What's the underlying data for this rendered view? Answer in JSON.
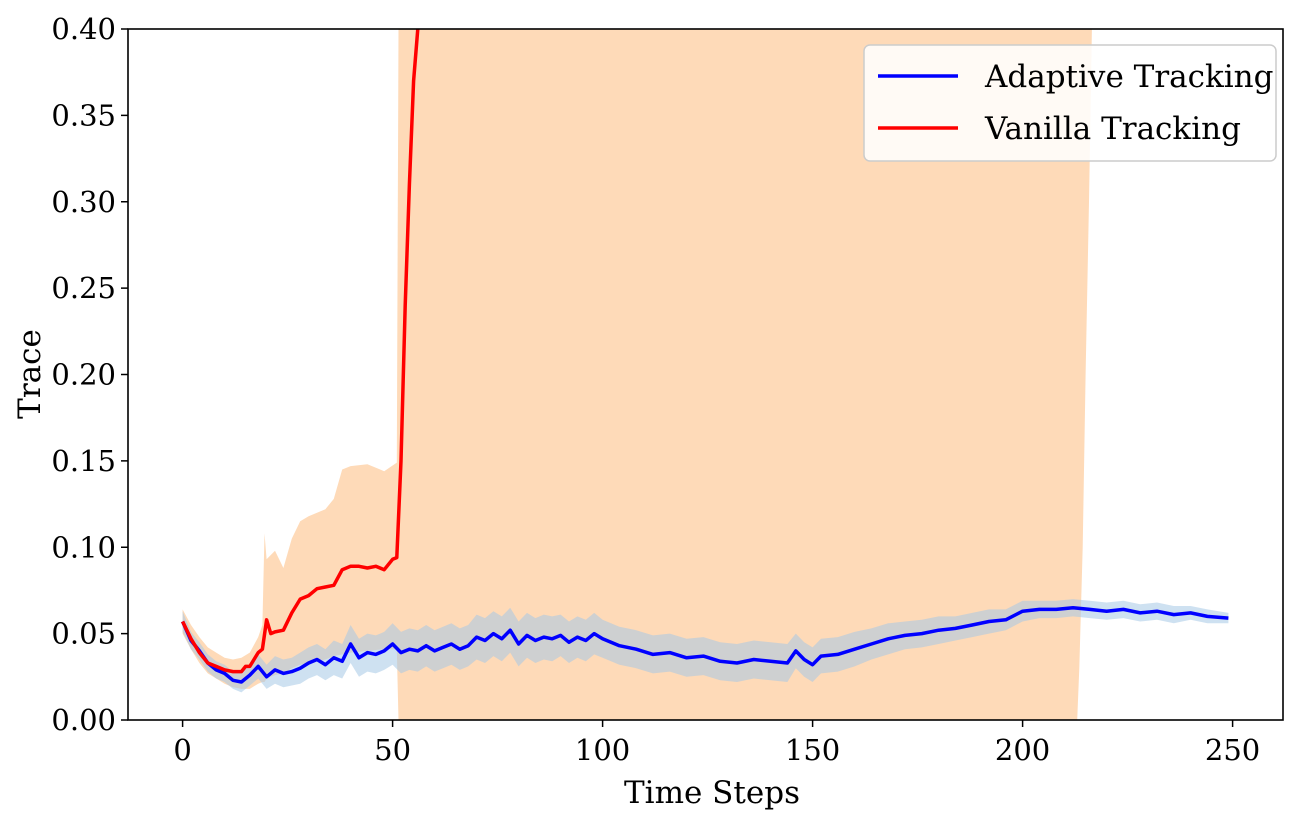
{
  "chart_data": {
    "type": "line",
    "title": "",
    "xlabel": "Time Steps",
    "ylabel": "Trace",
    "xlim": [
      -13,
      262
    ],
    "ylim": [
      0.0,
      0.4
    ],
    "xticks": [
      0,
      50,
      100,
      150,
      200,
      250
    ],
    "xtick_labels": [
      "0",
      "50",
      "100",
      "150",
      "200",
      "250"
    ],
    "yticks": [
      0.0,
      0.05,
      0.1,
      0.15,
      0.2,
      0.25,
      0.3,
      0.35,
      0.4
    ],
    "ytick_labels": [
      "0.00",
      "0.05",
      "0.10",
      "0.15",
      "0.20",
      "0.25",
      "0.30",
      "0.35",
      "0.40"
    ],
    "grid": false,
    "legend_position": "top-right",
    "series": [
      {
        "name": "Adaptive Tracking",
        "color": "#0000ff",
        "band_color": "#a6c8e6",
        "x": [
          0,
          2,
          4,
          6,
          8,
          10,
          12,
          14,
          16,
          18,
          20,
          22,
          24,
          26,
          28,
          30,
          32,
          34,
          36,
          38,
          40,
          42,
          44,
          46,
          48,
          50,
          52,
          54,
          56,
          58,
          60,
          62,
          64,
          66,
          68,
          70,
          72,
          74,
          76,
          78,
          80,
          82,
          84,
          86,
          88,
          90,
          92,
          94,
          96,
          98,
          100,
          104,
          108,
          112,
          116,
          120,
          124,
          128,
          132,
          136,
          140,
          144,
          146,
          148,
          150,
          152,
          156,
          160,
          164,
          168,
          172,
          176,
          180,
          184,
          188,
          192,
          196,
          200,
          204,
          208,
          212,
          216,
          220,
          224,
          228,
          232,
          236,
          240,
          244,
          249
        ],
        "values": [
          0.057,
          0.046,
          0.04,
          0.033,
          0.029,
          0.027,
          0.023,
          0.022,
          0.026,
          0.031,
          0.025,
          0.029,
          0.027,
          0.028,
          0.03,
          0.033,
          0.035,
          0.032,
          0.036,
          0.034,
          0.044,
          0.036,
          0.039,
          0.038,
          0.04,
          0.044,
          0.039,
          0.041,
          0.04,
          0.043,
          0.04,
          0.042,
          0.044,
          0.041,
          0.043,
          0.048,
          0.046,
          0.05,
          0.047,
          0.052,
          0.044,
          0.049,
          0.046,
          0.048,
          0.047,
          0.049,
          0.045,
          0.048,
          0.046,
          0.05,
          0.047,
          0.043,
          0.041,
          0.038,
          0.039,
          0.036,
          0.037,
          0.034,
          0.033,
          0.035,
          0.034,
          0.033,
          0.04,
          0.035,
          0.032,
          0.037,
          0.038,
          0.041,
          0.044,
          0.047,
          0.049,
          0.05,
          0.052,
          0.053,
          0.055,
          0.057,
          0.058,
          0.063,
          0.064,
          0.064,
          0.065,
          0.064,
          0.063,
          0.064,
          0.062,
          0.063,
          0.061,
          0.062,
          0.06,
          0.059
        ],
        "band_half_width": [
          0.006,
          0.005,
          0.005,
          0.005,
          0.005,
          0.005,
          0.005,
          0.006,
          0.006,
          0.007,
          0.007,
          0.008,
          0.008,
          0.008,
          0.009,
          0.009,
          0.009,
          0.009,
          0.01,
          0.01,
          0.011,
          0.011,
          0.011,
          0.011,
          0.011,
          0.012,
          0.012,
          0.012,
          0.012,
          0.012,
          0.012,
          0.012,
          0.012,
          0.012,
          0.012,
          0.013,
          0.013,
          0.013,
          0.013,
          0.013,
          0.013,
          0.013,
          0.013,
          0.013,
          0.013,
          0.012,
          0.012,
          0.012,
          0.012,
          0.012,
          0.011,
          0.011,
          0.011,
          0.011,
          0.011,
          0.011,
          0.011,
          0.011,
          0.011,
          0.011,
          0.011,
          0.011,
          0.01,
          0.01,
          0.01,
          0.01,
          0.01,
          0.01,
          0.009,
          0.009,
          0.008,
          0.008,
          0.008,
          0.007,
          0.007,
          0.007,
          0.006,
          0.006,
          0.005,
          0.005,
          0.005,
          0.005,
          0.005,
          0.005,
          0.005,
          0.005,
          0.005,
          0.004,
          0.004,
          0.003
        ]
      },
      {
        "name": "Vanilla Tracking",
        "color": "#ff0000",
        "band_color": "#fed8b4",
        "x": [
          0,
          2,
          4,
          6,
          8,
          10,
          12,
          14,
          15,
          16,
          17,
          18,
          19,
          20,
          21,
          22,
          24,
          26,
          28,
          30,
          32,
          34,
          36,
          38,
          40,
          42,
          44,
          46,
          48,
          50,
          51,
          52,
          53,
          54,
          55,
          56
        ],
        "values": [
          0.057,
          0.047,
          0.039,
          0.033,
          0.031,
          0.029,
          0.028,
          0.028,
          0.031,
          0.031,
          0.035,
          0.039,
          0.041,
          0.058,
          0.05,
          0.051,
          0.052,
          0.062,
          0.07,
          0.072,
          0.076,
          0.077,
          0.078,
          0.087,
          0.089,
          0.089,
          0.088,
          0.089,
          0.087,
          0.093,
          0.094,
          0.15,
          0.24,
          0.31,
          0.37,
          0.4
        ]
      }
    ],
    "vanilla_band": {
      "x": [
        0,
        2,
        4,
        6,
        8,
        10,
        12,
        14,
        16,
        18,
        19,
        19.5,
        20,
        22,
        24,
        26,
        28,
        30,
        32,
        34,
        36,
        38,
        40,
        44,
        48,
        51,
        51.4,
        55,
        60,
        100,
        150,
        200,
        212,
        214,
        216
      ],
      "lower": [
        0.05,
        0.041,
        0.033,
        0.027,
        0.024,
        0.021,
        0.019,
        0.018,
        0.018,
        0.021,
        0.022,
        0.022,
        0.024,
        0.026,
        0.027,
        0.03,
        0.032,
        0.033,
        0.034,
        0.035,
        0.037,
        0.038,
        0.039,
        0.04,
        0.041,
        0.041,
        0.0,
        0.0,
        0.0,
        0.0,
        0.0,
        0.0,
        0.0,
        0.0,
        0.0
      ],
      "upper": [
        0.064,
        0.055,
        0.048,
        0.042,
        0.039,
        0.036,
        0.035,
        0.036,
        0.039,
        0.048,
        0.055,
        0.108,
        0.093,
        0.098,
        0.088,
        0.105,
        0.115,
        0.118,
        0.12,
        0.122,
        0.128,
        0.145,
        0.147,
        0.148,
        0.144,
        0.149,
        0.4,
        0.4,
        0.4,
        0.4,
        0.4,
        0.4,
        0.4,
        0.4,
        0.4
      ]
    },
    "vanilla_band_right_edge": {
      "x": [
        216.5,
        215.8,
        215,
        214.3,
        213.5,
        213
      ],
      "y": [
        0.4,
        0.3,
        0.2,
        0.1,
        0.03,
        0.0
      ]
    }
  }
}
